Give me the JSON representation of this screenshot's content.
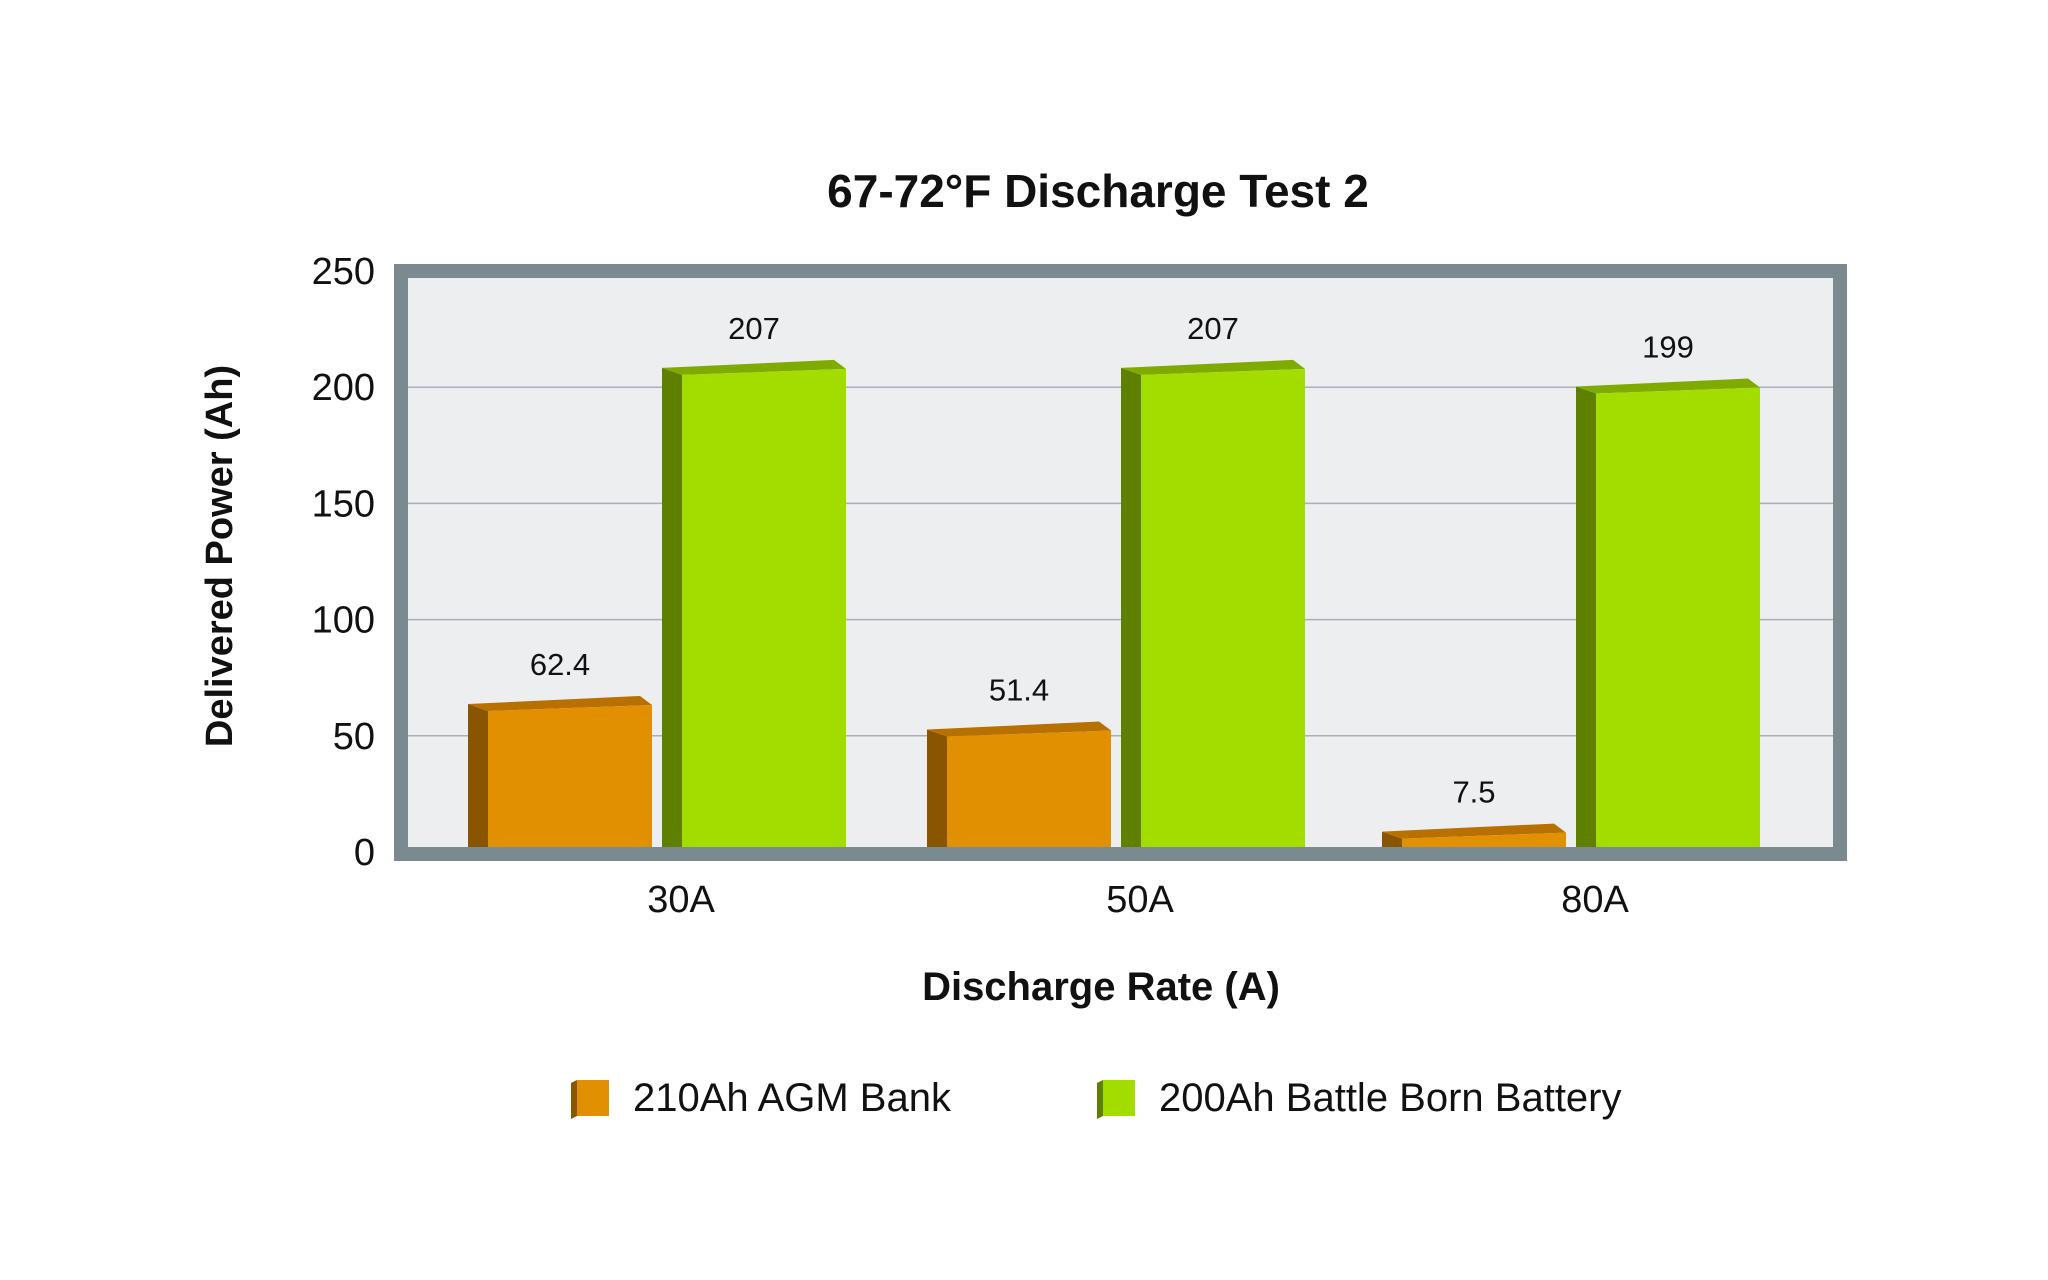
{
  "chart_data": {
    "type": "bar",
    "title": "67-72°F Discharge Test 2",
    "xlabel": "Discharge Rate (A)",
    "ylabel": "Delivered Power (Ah)",
    "categories": [
      "30A",
      "50A",
      "80A"
    ],
    "series": [
      {
        "name": "210Ah AGM Bank",
        "values": [
          62.4,
          51.4,
          7.5
        ],
        "labels": [
          "62.4",
          "51.4",
          "7.5"
        ],
        "color": "#E09000",
        "side_color": "#8A5500",
        "top_color": "#B87000"
      },
      {
        "name": "200Ah Battle Born Battery",
        "values": [
          207,
          207,
          199
        ],
        "labels": [
          "207",
          "207",
          "199"
        ],
        "color": "#A3DD00",
        "side_color": "#5E7F00",
        "top_color": "#7FAA00"
      }
    ],
    "ylim": [
      0,
      250
    ],
    "yticks": [
      "0",
      "50",
      "100",
      "150",
      "200",
      "250"
    ],
    "grid": true,
    "legend_position": "bottom",
    "frame_color": "#7A8A8E",
    "plot_background": "#EDEEF0",
    "bar_style": "3d"
  }
}
